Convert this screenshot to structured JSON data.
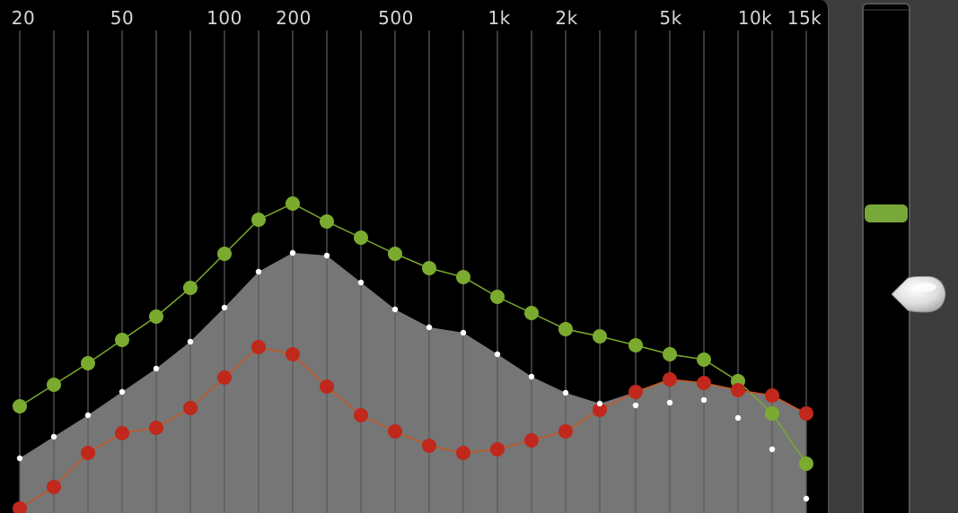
{
  "frequency_axis": {
    "labels": [
      "20",
      "50",
      "100",
      "200",
      "500",
      "1k",
      "2k",
      "5k",
      "10k",
      "15k"
    ]
  },
  "colors": {
    "panel_background": "#000000",
    "green_curve": "#7aab2f",
    "red_curve": "#c0281c",
    "fill_green": "#7a8c48",
    "fill_gray": "#767676",
    "grid_line": "#5a5a5a",
    "white_marker": "#ffffff",
    "slider_thumb": "#79a83a"
  },
  "slider": {
    "level": 0.41
  }
}
